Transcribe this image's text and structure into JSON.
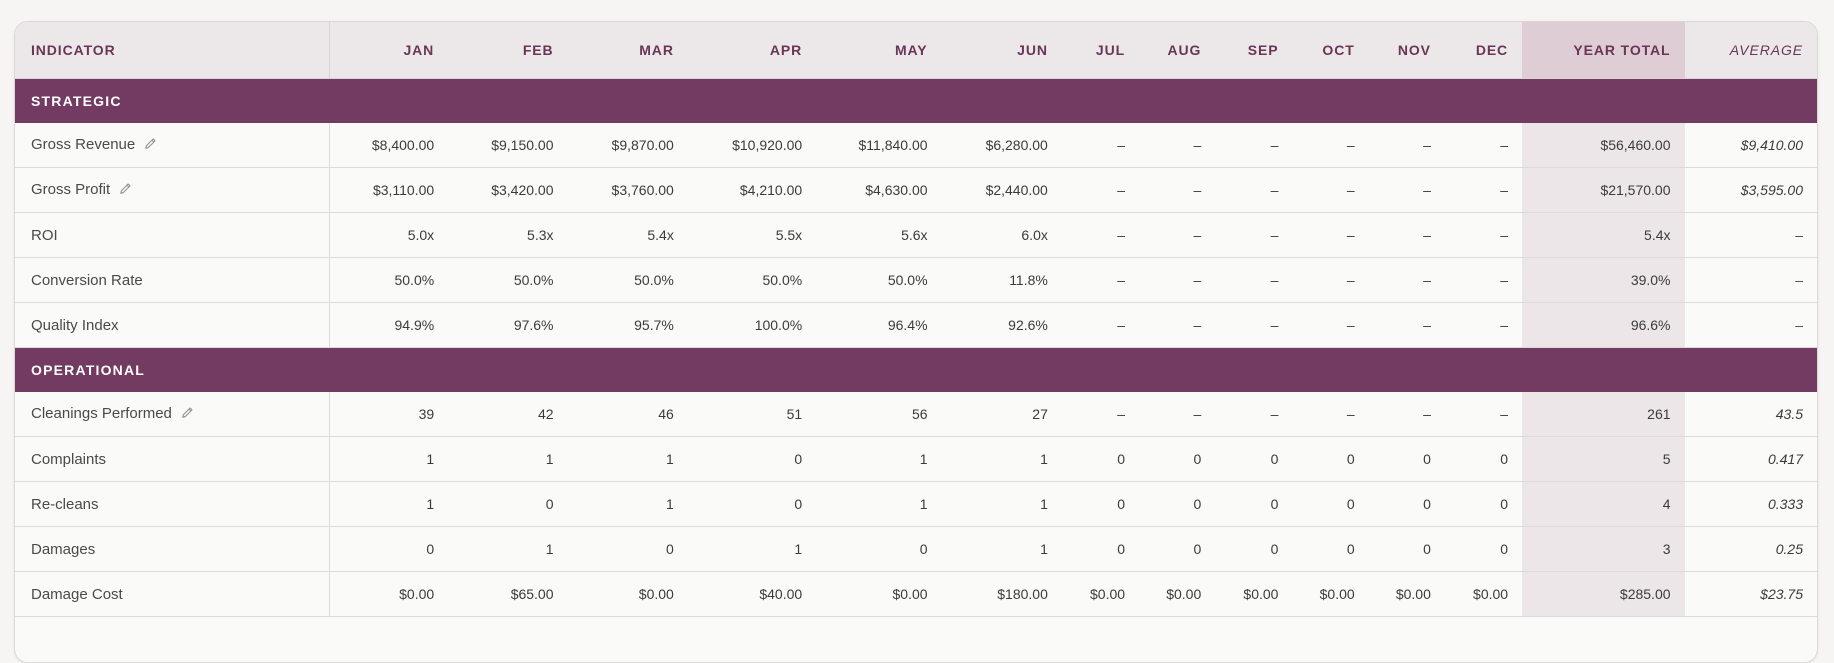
{
  "columns": [
    "INDICATOR",
    "JAN",
    "FEB",
    "MAR",
    "APR",
    "MAY",
    "JUN",
    "JUL",
    "AUG",
    "SEP",
    "OCT",
    "NOV",
    "DEC",
    "YEAR TOTAL",
    "AVERAGE"
  ],
  "sections": [
    {
      "title": "STRATEGIC",
      "rows": [
        {
          "label": "Gross Revenue",
          "editable": true,
          "months": [
            "$8,400.00",
            "$9,150.00",
            "$9,870.00",
            "$10,920.00",
            "$11,840.00",
            "$6,280.00",
            "–",
            "–",
            "–",
            "–",
            "–",
            "–"
          ],
          "total": "$56,460.00",
          "average": "$9,410.00"
        },
        {
          "label": "Gross Profit",
          "editable": true,
          "months": [
            "$3,110.00",
            "$3,420.00",
            "$3,760.00",
            "$4,210.00",
            "$4,630.00",
            "$2,440.00",
            "–",
            "–",
            "–",
            "–",
            "–",
            "–"
          ],
          "total": "$21,570.00",
          "average": "$3,595.00"
        },
        {
          "label": "ROI",
          "editable": false,
          "months": [
            "5.0x",
            "5.3x",
            "5.4x",
            "5.5x",
            "5.6x",
            "6.0x",
            "–",
            "–",
            "–",
            "–",
            "–",
            "–"
          ],
          "total": "5.4x",
          "average": "–"
        },
        {
          "label": "Conversion Rate",
          "editable": false,
          "months": [
            "50.0%",
            "50.0%",
            "50.0%",
            "50.0%",
            "50.0%",
            "11.8%",
            "–",
            "–",
            "–",
            "–",
            "–",
            "–"
          ],
          "total": "39.0%",
          "average": "–"
        },
        {
          "label": "Quality Index",
          "editable": false,
          "months": [
            "94.9%",
            "97.6%",
            "95.7%",
            "100.0%",
            "96.4%",
            "92.6%",
            "–",
            "–",
            "–",
            "–",
            "–",
            "–"
          ],
          "total": "96.6%",
          "average": "–"
        }
      ]
    },
    {
      "title": "OPERATIONAL",
      "rows": [
        {
          "label": "Cleanings Performed",
          "editable": true,
          "months": [
            "39",
            "42",
            "46",
            "51",
            "56",
            "27",
            "–",
            "–",
            "–",
            "–",
            "–",
            "–"
          ],
          "total": "261",
          "average": "43.5"
        },
        {
          "label": "Complaints",
          "editable": false,
          "months": [
            "1",
            "1",
            "1",
            "0",
            "1",
            "1",
            "0",
            "0",
            "0",
            "0",
            "0",
            "0"
          ],
          "total": "5",
          "average": "0.417"
        },
        {
          "label": "Re-cleans",
          "editable": false,
          "months": [
            "1",
            "0",
            "1",
            "0",
            "1",
            "1",
            "0",
            "0",
            "0",
            "0",
            "0",
            "0"
          ],
          "total": "4",
          "average": "0.333"
        },
        {
          "label": "Damages",
          "editable": false,
          "months": [
            "0",
            "1",
            "0",
            "1",
            "0",
            "1",
            "0",
            "0",
            "0",
            "0",
            "0",
            "0"
          ],
          "total": "3",
          "average": "0.25"
        },
        {
          "label": "Damage Cost",
          "editable": false,
          "months": [
            "$0.00",
            "$65.00",
            "$0.00",
            "$40.00",
            "$0.00",
            "$180.00",
            "$0.00",
            "$0.00",
            "$0.00",
            "$0.00",
            "$0.00",
            "$0.00"
          ],
          "total": "$285.00",
          "average": "$23.75"
        }
      ]
    }
  ],
  "colors": {
    "accent": "#733b61",
    "header_bg": "#ece8e9",
    "total_col": "#ece6e8"
  },
  "icons": {
    "edit": "pencil-icon"
  }
}
